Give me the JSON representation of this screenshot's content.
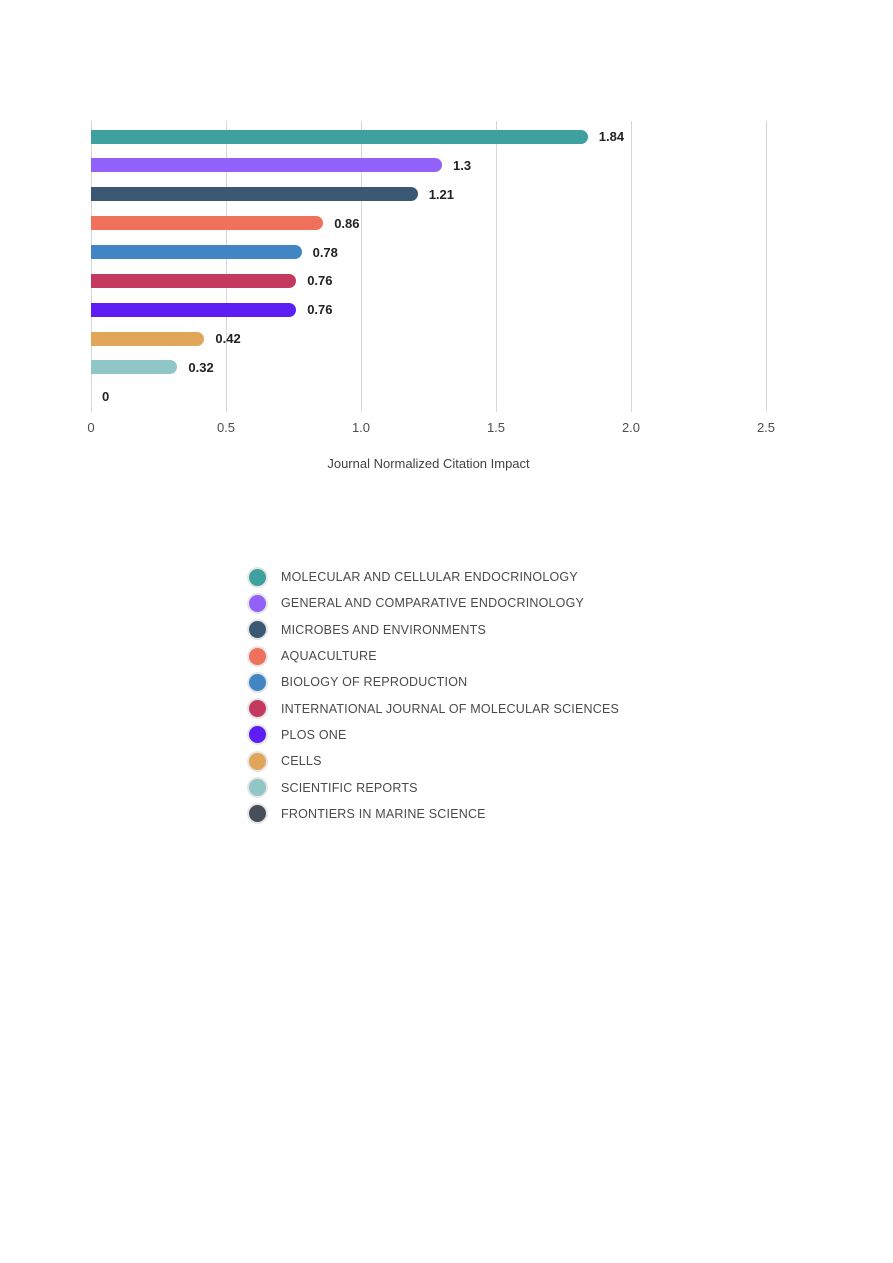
{
  "chart_data": {
    "type": "bar",
    "orientation": "horizontal",
    "title": "",
    "xlabel": "Journal Normalized Citation Impact",
    "ylabel": "",
    "xlim": [
      0,
      2.5
    ],
    "xtick_values": [
      0,
      0.5,
      1.0,
      1.5,
      2.0,
      2.5
    ],
    "xtick_labels": [
      "0",
      "0.5",
      "1.0",
      "1.5",
      "2.0",
      "2.5"
    ],
    "grid": true,
    "legend_position": "bottom-center",
    "categories": [
      "MOLECULAR AND CELLULAR ENDOCRINOLOGY",
      "GENERAL AND COMPARATIVE ENDOCRINOLOGY",
      "MICROBES AND ENVIRONMENTS",
      "AQUACULTURE",
      "BIOLOGY OF REPRODUCTION",
      "INTERNATIONAL JOURNAL OF MOLECULAR SCIENCES",
      "PLOS ONE",
      "CELLS",
      "SCIENTIFIC REPORTS",
      "FRONTIERS IN MARINE SCIENCE"
    ],
    "values": [
      1.84,
      1.3,
      1.21,
      0.86,
      0.78,
      0.76,
      0.76,
      0.42,
      0.32,
      0
    ],
    "value_labels": [
      "1.84",
      "1.3",
      "1.21",
      "0.86",
      "0.78",
      "0.76",
      "0.76",
      "0.42",
      "0.32",
      "0"
    ],
    "bar_colors": [
      "#3FA0A0",
      "#9161F9",
      "#3A5874",
      "#F0715B",
      "#4185C5",
      "#C33960",
      "#5C1EF5",
      "#E2A65B",
      "#90C6C6",
      "#474E58"
    ]
  },
  "theme": {
    "background": "#ffffff",
    "grid_color": "#d6d6d6",
    "value_label_color": "#222222",
    "tick_label_color": "#4d4d4d",
    "axis_title_color": "#424242",
    "legend_label_color": "#4a4a4a"
  }
}
